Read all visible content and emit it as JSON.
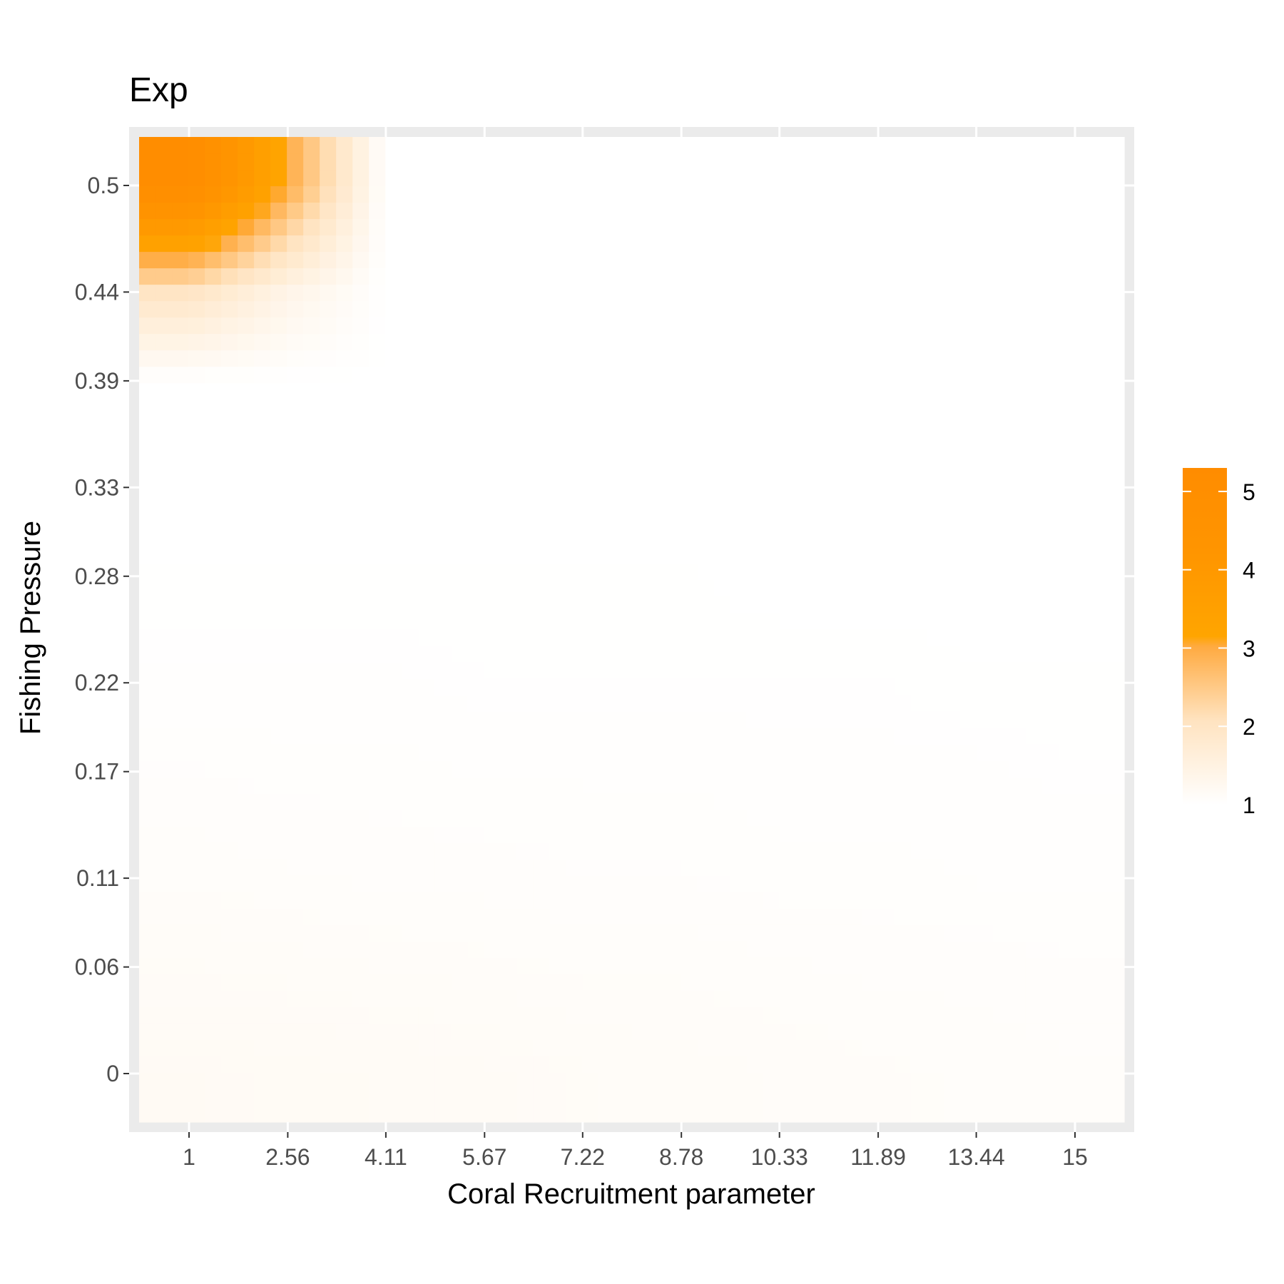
{
  "chart_data": {
    "type": "heatmap",
    "title": "Exp",
    "xlabel": "Coral Recruitment parameter",
    "ylabel": "Fishing Pressure",
    "x_ticks": [
      "1",
      "2.56",
      "4.11",
      "5.67",
      "7.22",
      "8.78",
      "10.33",
      "11.89",
      "13.44",
      "15"
    ],
    "y_ticks": [
      "0",
      "0.06",
      "0.11",
      "0.17",
      "0.22",
      "0.28",
      "0.33",
      "0.39",
      "0.44",
      "0.5"
    ],
    "xlim": [
      0.0,
      15.5
    ],
    "ylim": [
      -0.025,
      0.525
    ],
    "grid": true,
    "legend": {
      "position": "right",
      "range": [
        1.0,
        5.3
      ],
      "ticks": [
        "1",
        "2",
        "3",
        "4",
        "5"
      ],
      "colors": [
        "#ffffff",
        "#ffcc88",
        "#ffa500",
        "#ff8c00"
      ]
    },
    "grid_x": [
      1,
      2.56,
      4.11,
      5.67,
      7.22,
      8.78,
      10.33,
      11.89,
      13.44,
      15
    ],
    "grid_y": [
      0,
      0.06,
      0.11,
      0.17,
      0.22,
      0.28,
      0.33,
      0.39,
      0.44,
      0.5
    ],
    "z": [
      [
        1.18,
        1.17,
        1.16,
        1.15,
        1.13,
        1.12,
        1.11,
        1.1,
        1.09,
        1.08
      ],
      [
        1.13,
        1.12,
        1.11,
        1.1,
        1.09,
        1.09,
        1.08,
        1.07,
        1.07,
        1.06
      ],
      [
        1.09,
        1.08,
        1.07,
        1.07,
        1.06,
        1.06,
        1.05,
        1.05,
        1.04,
        1.04
      ],
      [
        1.06,
        1.05,
        1.05,
        1.04,
        1.04,
        1.04,
        1.03,
        1.03,
        1.03,
        1.02
      ],
      [
        1.03,
        1.03,
        1.03,
        1.02,
        1.02,
        1.02,
        1.02,
        1.02,
        1.01,
        1.01
      ],
      [
        1.01,
        1.01,
        1.01,
        1.01,
        1.01,
        1.01,
        1.0,
        1.0,
        1.0,
        1.0
      ],
      [
        1.0,
        1.0,
        1.0,
        1.0,
        1.0,
        1.0,
        1.0,
        1.0,
        1.0,
        1.0
      ],
      [
        1.0,
        1.0,
        1.0,
        1.0,
        1.0,
        1.0,
        1.0,
        1.0,
        1.0,
        1.0
      ],
      [
        2.0,
        1.4,
        1.0,
        1.0,
        1.0,
        1.0,
        1.0,
        1.0,
        1.0,
        1.0
      ],
      [
        5.2,
        3.0,
        1.0,
        1.0,
        1.0,
        1.0,
        1.0,
        1.0,
        1.0,
        1.0
      ]
    ]
  }
}
